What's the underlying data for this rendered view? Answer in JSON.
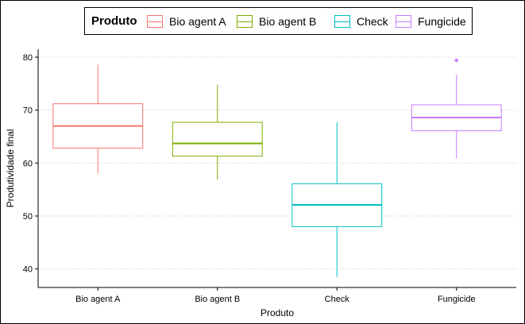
{
  "chart_data": {
    "type": "box",
    "xlabel": "Produto",
    "ylabel": "Produtividade final",
    "ylim": [
      36.5,
      81.5
    ],
    "yticks": [
      "40",
      "50",
      "60",
      "70",
      "80"
    ],
    "ytick_values": [
      40,
      50,
      60,
      70,
      80
    ],
    "grid": "horizontal dotted",
    "legend": {
      "title": "Produto",
      "placement": "top"
    },
    "categories": [
      "Bio agent A",
      "Bio agent B",
      "Check",
      "Fungicide"
    ],
    "series": [
      {
        "name": "Bio agent A",
        "color": "#F8766D",
        "whisker_low": 58.0,
        "q1": 62.8,
        "median": 67.0,
        "q3": 71.2,
        "whisker_high": 78.6,
        "outliers": []
      },
      {
        "name": "Bio agent B",
        "color": "#7CAE00",
        "whisker_low": 56.9,
        "q1": 61.3,
        "median": 63.7,
        "q3": 67.7,
        "whisker_high": 74.8,
        "outliers": []
      },
      {
        "name": "Check",
        "color": "#00BFC4",
        "whisker_low": 38.5,
        "q1": 48.0,
        "median": 52.1,
        "q3": 56.1,
        "whisker_high": 67.7,
        "outliers": []
      },
      {
        "name": "Fungicide",
        "color": "#C77CFF",
        "whisker_low": 60.9,
        "q1": 66.1,
        "median": 68.6,
        "q3": 71.0,
        "whisker_high": 76.7,
        "outliers": [
          79.4
        ]
      }
    ]
  }
}
